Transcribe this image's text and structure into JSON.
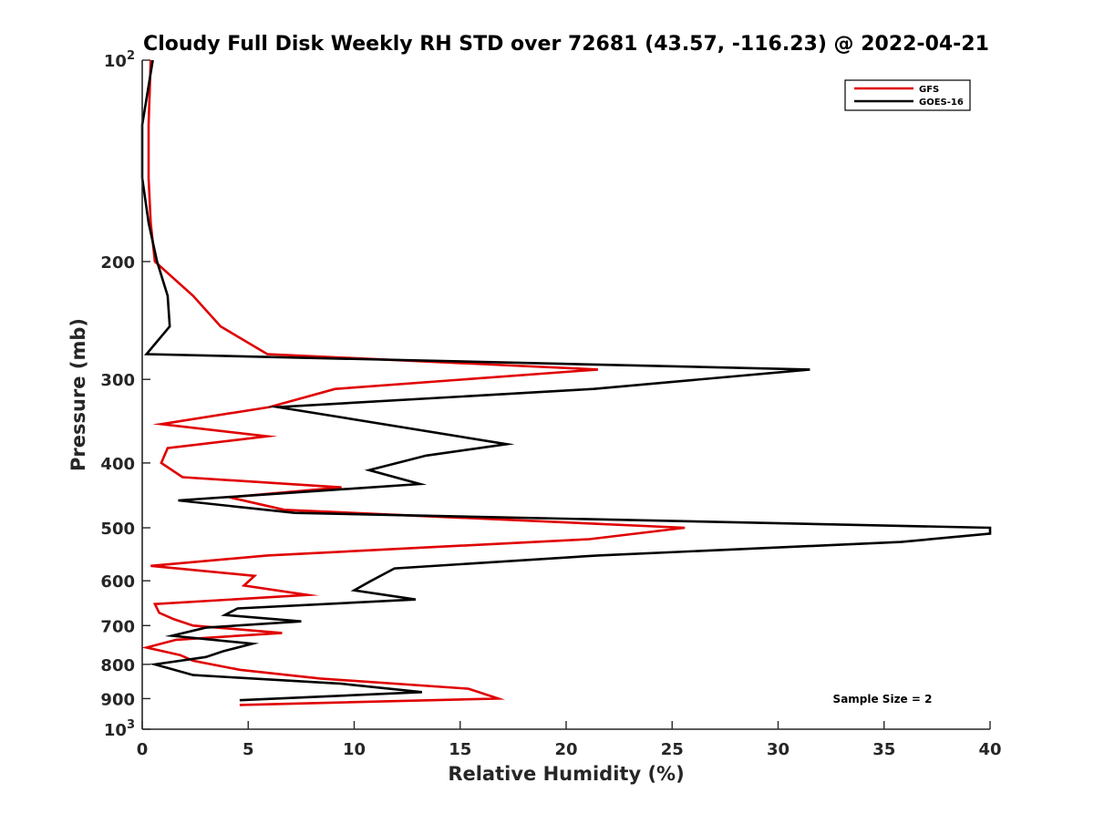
{
  "chart_data": {
    "type": "line",
    "title": "Cloudy Full Disk Weekly RH STD over 72681 (43.57, -116.23) @ 2022-04-21",
    "xlabel": "Relative Humidity (%)",
    "ylabel": "Pressure (mb)",
    "xlim": [
      0,
      40
    ],
    "ylim": [
      100,
      1000
    ],
    "y_scale": "log",
    "y_reversed": true,
    "grid": false,
    "legend_position": "top-right",
    "annotation": "Sample Size = 2",
    "x_ticks": [
      0,
      5,
      10,
      15,
      20,
      25,
      30,
      35,
      40
    ],
    "y_ticks": [
      {
        "value": 100,
        "base": "10",
        "exp": "2"
      },
      {
        "value": 200,
        "label": "200"
      },
      {
        "value": 300,
        "label": "300"
      },
      {
        "value": 400,
        "label": "400"
      },
      {
        "value": 500,
        "label": "500"
      },
      {
        "value": 600,
        "label": "600"
      },
      {
        "value": 700,
        "label": "700"
      },
      {
        "value": 800,
        "label": "800"
      },
      {
        "value": 900,
        "label": "900"
      },
      {
        "value": 1000,
        "base": "10",
        "exp": "3"
      }
    ],
    "series": [
      {
        "name": "GFS",
        "color": "#e00000",
        "points": [
          [
            0.4,
            100
          ],
          [
            0.3,
            125
          ],
          [
            0.3,
            150
          ],
          [
            0.4,
            175
          ],
          [
            0.6,
            200
          ],
          [
            2.4,
            225
          ],
          [
            3.7,
            250
          ],
          [
            5.9,
            275
          ],
          [
            21.5,
            290
          ],
          [
            9.1,
            310
          ],
          [
            6.0,
            330
          ],
          [
            0.9,
            350
          ],
          [
            5.9,
            365
          ],
          [
            1.2,
            380
          ],
          [
            0.9,
            400
          ],
          [
            1.9,
            420
          ],
          [
            9.4,
            435
          ],
          [
            4.1,
            450
          ],
          [
            6.7,
            470
          ],
          [
            25.6,
            500
          ],
          [
            21.1,
            520
          ],
          [
            5.9,
            550
          ],
          [
            0.4,
            570
          ],
          [
            5.3,
            590
          ],
          [
            4.8,
            610
          ],
          [
            7.8,
            630
          ],
          [
            0.6,
            650
          ],
          [
            0.8,
            670
          ],
          [
            1.5,
            685
          ],
          [
            2.4,
            700
          ],
          [
            6.6,
            718
          ],
          [
            1.6,
            735
          ],
          [
            0.2,
            755
          ],
          [
            1.8,
            775
          ],
          [
            2.4,
            790
          ],
          [
            4.6,
            815
          ],
          [
            8.4,
            840
          ],
          [
            15.4,
            870
          ],
          [
            16.8,
            900
          ],
          [
            4.6,
            920
          ]
        ]
      },
      {
        "name": "GOES-16",
        "color": "#000000",
        "points": [
          [
            0.5,
            100
          ],
          [
            0.0,
            125
          ],
          [
            0.0,
            150
          ],
          [
            0.3,
            175
          ],
          [
            0.7,
            200
          ],
          [
            1.2,
            225
          ],
          [
            1.3,
            250
          ],
          [
            0.2,
            275
          ],
          [
            31.5,
            290
          ],
          [
            21.3,
            310
          ],
          [
            6.4,
            330
          ],
          [
            17.2,
            375
          ],
          [
            13.4,
            390
          ],
          [
            10.7,
            410
          ],
          [
            13.1,
            430
          ],
          [
            1.7,
            455
          ],
          [
            7.2,
            475
          ],
          [
            40.0,
            500
          ],
          [
            40.0,
            510
          ],
          [
            35.8,
            525
          ],
          [
            21.5,
            550
          ],
          [
            11.9,
            575
          ],
          [
            10.8,
            600
          ],
          [
            10.0,
            620
          ],
          [
            12.9,
            640
          ],
          [
            4.5,
            660
          ],
          [
            3.9,
            675
          ],
          [
            7.5,
            690
          ],
          [
            3.0,
            705
          ],
          [
            1.4,
            725
          ],
          [
            5.2,
            745
          ],
          [
            3.8,
            765
          ],
          [
            3.0,
            780
          ],
          [
            0.6,
            800
          ],
          [
            2.4,
            830
          ],
          [
            9.4,
            855
          ],
          [
            13.2,
            880
          ],
          [
            4.6,
            905
          ]
        ]
      }
    ]
  }
}
